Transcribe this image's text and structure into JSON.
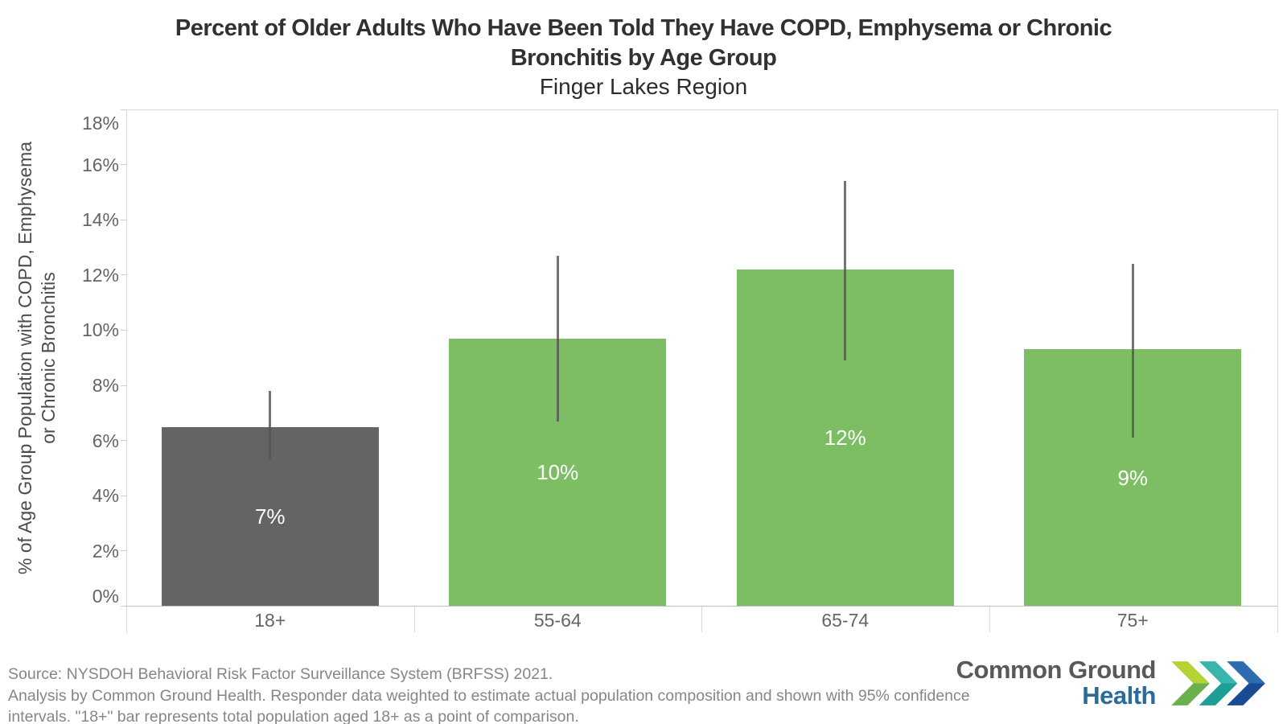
{
  "title": {
    "line1": "Percent of Older Adults Who Have Been Told They Have COPD, Emphysema or Chronic",
    "line2": "Bronchitis by Age Group",
    "subtitle": "Finger Lakes Region"
  },
  "y_axis": {
    "title_lines": [
      "% of Age Group Population with COPD, Emphysema",
      "or Chronic Bronchitis"
    ],
    "ticks": [
      "0%",
      "2%",
      "4%",
      "6%",
      "8%",
      "10%",
      "12%",
      "14%",
      "16%",
      "18%"
    ]
  },
  "chart_data": {
    "type": "bar",
    "title": "Percent of Older Adults Who Have Been Told They Have COPD, Emphysema or Chronic Bronchitis by Age Group",
    "subtitle": "Finger Lakes Region",
    "ylabel": "% of Age Group Population with COPD, Emphysema or Chronic Bronchitis",
    "xlabel": "",
    "categories": [
      "18+",
      "55-64",
      "65-74",
      "75+"
    ],
    "values": [
      6.5,
      9.7,
      12.2,
      9.3
    ],
    "bar_labels": [
      "7%",
      "10%",
      "12%",
      "9%"
    ],
    "ci_low": [
      5.3,
      6.7,
      8.9,
      6.1
    ],
    "ci_high": [
      7.8,
      12.7,
      15.4,
      12.4
    ],
    "bar_colors": [
      "#636466",
      "#7DBE64",
      "#7DBE64",
      "#7DBE64"
    ],
    "error_bar_color": "#555555",
    "value_label_color": "#ffffff",
    "ylim": [
      0,
      18
    ],
    "ytick_step": 2,
    "grid": false,
    "legend": "none"
  },
  "footer": {
    "line1": "Source: NYSDOH Behavioral Risk Factor Surveillance System (BRFSS) 2021.",
    "line2": "Analysis by Common Ground Health. Responder data weighted to estimate actual population composition and shown with 95% confidence",
    "line3": "intervals. \"18+\" bar represents total population aged 18+ as a point of comparison."
  },
  "logo": {
    "name_line1": "Common Ground",
    "name_line2": "Health",
    "text_color": "#58595B",
    "health_color": "#2A6B9C",
    "chevrons": [
      {
        "upper": "#B5D335",
        "lower": "#6BB04E"
      },
      {
        "upper": "#3AB5AE",
        "lower": "#1E9E95"
      },
      {
        "upper": "#2E6CB0",
        "lower": "#1A4C93"
      }
    ]
  }
}
